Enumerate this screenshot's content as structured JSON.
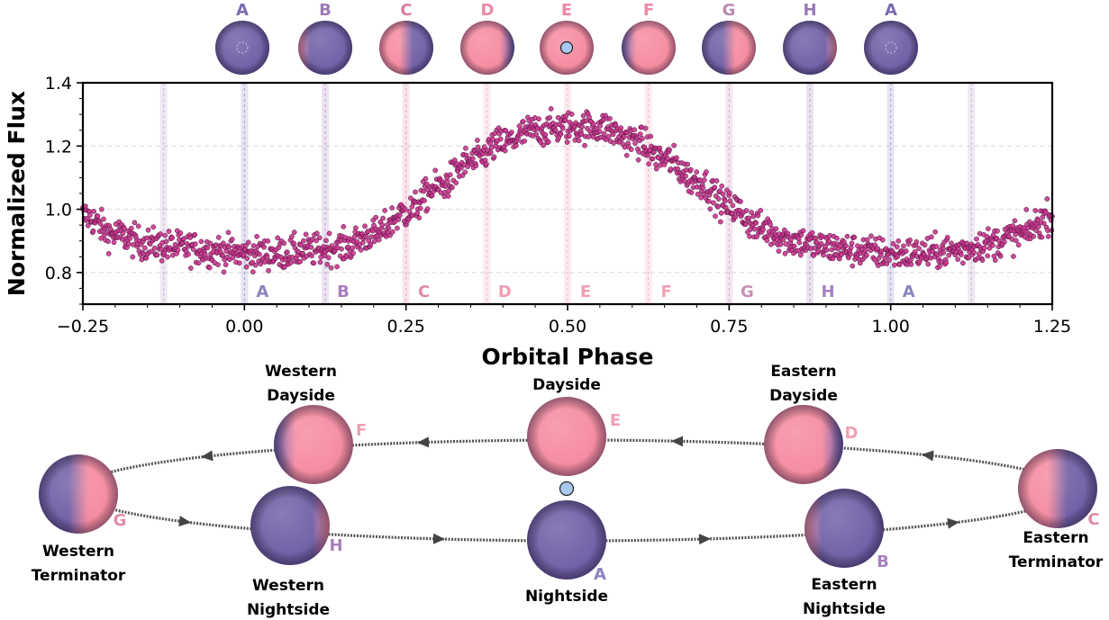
{
  "chart_data": {
    "type": "scatter",
    "xlabel": "Orbital Phase",
    "ylabel": "Normalized Flux",
    "xlim": [
      -0.25,
      1.25
    ],
    "ylim": [
      0.7,
      1.4
    ],
    "xticks": [
      -0.25,
      0.0,
      0.25,
      0.5,
      0.75,
      1.0,
      1.25
    ],
    "xtick_labels": [
      "−0.25",
      "0.00",
      "0.25",
      "0.50",
      "0.75",
      "1.00",
      "1.25"
    ],
    "yticks": [
      0.8,
      1.0,
      1.2,
      1.4
    ],
    "ytick_labels": [
      "0.8",
      "1.0",
      "1.2",
      "1.4"
    ],
    "grid": "horizontal dashed",
    "marker_color": "#c8388f",
    "curve": {
      "x": [
        -0.25,
        -0.2,
        -0.15,
        -0.1,
        -0.05,
        0.0,
        0.05,
        0.1,
        0.15,
        0.2,
        0.25,
        0.3,
        0.35,
        0.4,
        0.45,
        0.5,
        0.55,
        0.6,
        0.65,
        0.7,
        0.75,
        0.8,
        0.85,
        0.9,
        0.95,
        1.0,
        1.05,
        1.1,
        1.15,
        1.2,
        1.25
      ],
      "y": [
        0.98,
        0.92,
        0.89,
        0.88,
        0.87,
        0.86,
        0.86,
        0.87,
        0.88,
        0.92,
        0.99,
        1.07,
        1.15,
        1.21,
        1.25,
        1.26,
        1.26,
        1.22,
        1.16,
        1.09,
        1.01,
        0.94,
        0.9,
        0.88,
        0.87,
        0.86,
        0.86,
        0.87,
        0.89,
        0.92,
        0.98
      ]
    },
    "scatter_spread": 0.025,
    "phase_markers": [
      {
        "x": -0.125,
        "label": "",
        "color": "#b59ac6"
      },
      {
        "x": 0.0,
        "label": "A",
        "color": "#8a84c0"
      },
      {
        "x": 0.125,
        "label": "B",
        "color": "#a77fbd"
      },
      {
        "x": 0.25,
        "label": "C",
        "color": "#df8aa6"
      },
      {
        "x": 0.375,
        "label": "D",
        "color": "#f19fb3"
      },
      {
        "x": 0.5,
        "label": "E",
        "color": "#f19fb3"
      },
      {
        "x": 0.625,
        "label": "F",
        "color": "#f19fb3"
      },
      {
        "x": 0.75,
        "label": "G",
        "color": "#c98fb6"
      },
      {
        "x": 0.875,
        "label": "H",
        "color": "#a77fbd"
      },
      {
        "x": 1.0,
        "label": "A",
        "color": "#8a84c0"
      },
      {
        "x": 1.125,
        "label": "",
        "color": "#b59ac6"
      }
    ]
  },
  "top_phase_planets": [
    {
      "letter": "A",
      "color": "#7b6bad",
      "day_fraction": 0.0,
      "day_side": "none",
      "transit_dot": "dashed"
    },
    {
      "letter": "B",
      "color": "#9a78b5",
      "day_fraction": 0.1,
      "day_side": "left",
      "transit_dot": ""
    },
    {
      "letter": "C",
      "color": "#d97e9c",
      "day_fraction": 0.5,
      "day_side": "left",
      "transit_dot": ""
    },
    {
      "letter": "D",
      "color": "#ec8aa2",
      "day_fraction": 0.85,
      "day_side": "left",
      "transit_dot": ""
    },
    {
      "letter": "E",
      "color": "#ec8aa2",
      "day_fraction": 1.0,
      "day_side": "full",
      "transit_dot": "moon"
    },
    {
      "letter": "F",
      "color": "#ec8aa2",
      "day_fraction": 0.85,
      "day_side": "right",
      "transit_dot": ""
    },
    {
      "letter": "G",
      "color": "#b888b2",
      "day_fraction": 0.5,
      "day_side": "right",
      "transit_dot": ""
    },
    {
      "letter": "H",
      "color": "#9a78b5",
      "day_fraction": 0.1,
      "day_side": "right",
      "transit_dot": ""
    },
    {
      "letter": "A",
      "color": "#7b6bad",
      "day_fraction": 0.0,
      "day_side": "none",
      "transit_dot": "dashed"
    }
  ],
  "orbit_diagram": {
    "planets": [
      {
        "letter": "A",
        "label_lines": [
          "Nightside"
        ],
        "day_fraction": 0.0,
        "day_side": "none"
      },
      {
        "letter": "B",
        "label_lines": [
          "Eastern",
          "Nightside"
        ],
        "day_fraction": 0.1,
        "day_side": "left"
      },
      {
        "letter": "C",
        "label_lines": [
          "Eastern",
          "Terminator"
        ],
        "day_fraction": 0.5,
        "day_side": "left"
      },
      {
        "letter": "D",
        "label_lines": [
          "Eastern",
          "Dayside"
        ],
        "day_fraction": 0.85,
        "day_side": "left"
      },
      {
        "letter": "E",
        "label_lines": [
          "Dayside"
        ],
        "day_fraction": 1.0,
        "day_side": "full"
      },
      {
        "letter": "F",
        "label_lines": [
          "Western",
          "Dayside"
        ],
        "day_fraction": 0.85,
        "day_side": "right"
      },
      {
        "letter": "G",
        "label_lines": [
          "Western",
          "Terminator"
        ],
        "day_fraction": 0.5,
        "day_side": "right"
      },
      {
        "letter": "H",
        "label_lines": [
          "Western",
          "Nightside"
        ],
        "day_fraction": 0.1,
        "day_side": "right"
      }
    ],
    "colors": {
      "night": "#6f5ea5",
      "day": "#f58aa0",
      "star": "#a9c8ee",
      "orbit": "#555555"
    }
  }
}
